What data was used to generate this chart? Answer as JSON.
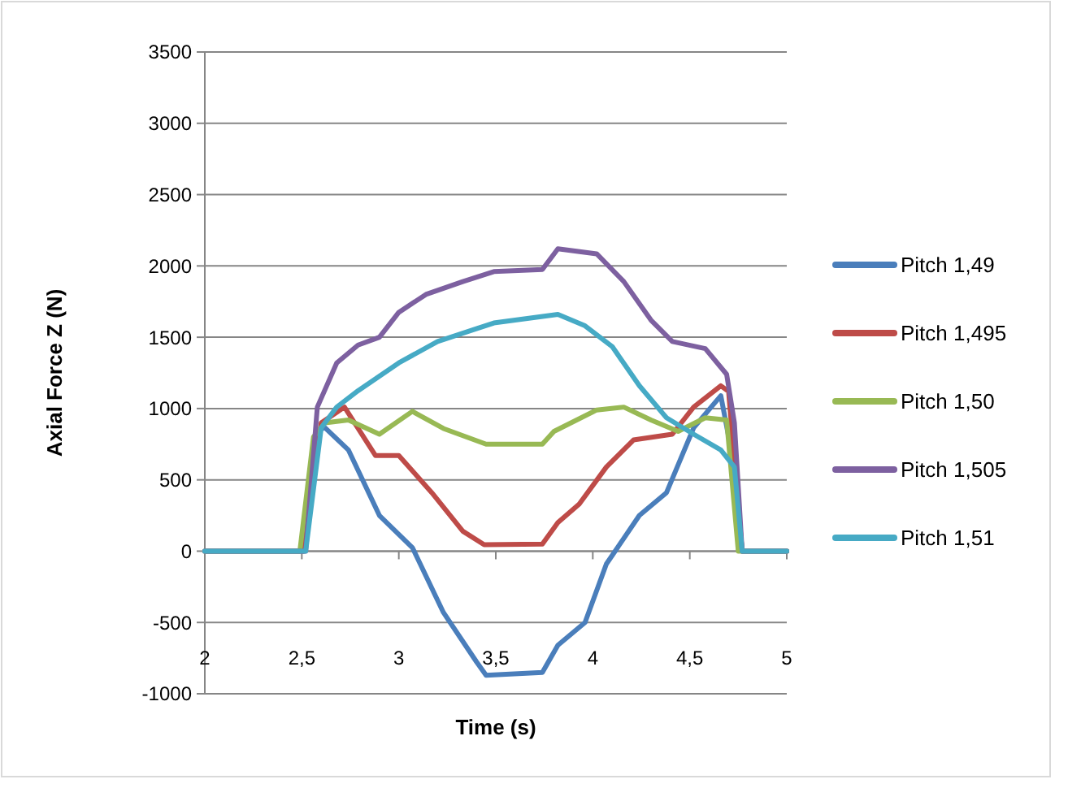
{
  "chart_data": {
    "type": "line",
    "xlabel": "Time (s)",
    "ylabel": "Axial Force Z (N)",
    "xlim": [
      2,
      5
    ],
    "xticks": [
      2,
      {
        "value": 2.5,
        "label": "2,5"
      },
      3,
      {
        "value": 3.5,
        "label": "3,5"
      },
      4,
      {
        "value": 4.5,
        "label": "4,5"
      },
      5
    ],
    "ylim": [
      -1000,
      3500
    ],
    "yticks": [
      -1000,
      -500,
      0,
      500,
      1000,
      1500,
      2000,
      2500,
      3000,
      3500
    ],
    "grid": "y",
    "legend": "right",
    "marker": "none",
    "line_style": "solid",
    "series": [
      {
        "name": "Pitch 1,49",
        "color": "#4a7ebb",
        "x": [
          2,
          2.5,
          2.51,
          2.58,
          2.62,
          2.74,
          2.9,
          3.07,
          3.23,
          3.4,
          3.45,
          3.74,
          3.82,
          3.96,
          4.07,
          4.24,
          4.38,
          4.52,
          4.66,
          4.73,
          4.77,
          5
        ],
        "values": [
          0,
          0,
          0,
          850,
          865,
          710,
          250,
          25,
          -430,
          -775,
          -870,
          -850,
          -660,
          -500,
          -90,
          250,
          410,
          865,
          1090,
          590,
          0,
          0
        ]
      },
      {
        "name": "Pitch 1,495",
        "color": "#be4b48",
        "x": [
          2,
          2.5,
          2.51,
          2.6,
          2.72,
          2.88,
          3.0,
          3.17,
          3.33,
          3.44,
          3.74,
          3.82,
          3.93,
          4.07,
          4.21,
          4.41,
          4.52,
          4.66,
          4.7,
          4.77,
          5
        ],
        "values": [
          0,
          0,
          0,
          900,
          1010,
          670,
          670,
          410,
          140,
          45,
          50,
          200,
          330,
          590,
          780,
          820,
          1010,
          1160,
          1120,
          0,
          0
        ]
      },
      {
        "name": "Pitch 1,50",
        "color": "#98b954",
        "x": [
          2,
          2.48,
          2.49,
          2.56,
          2.62,
          2.74,
          2.9,
          3.07,
          3.23,
          3.45,
          3.74,
          3.8,
          4.02,
          4.16,
          4.3,
          4.44,
          4.58,
          4.69,
          4.75,
          5
        ],
        "values": [
          0,
          0,
          0,
          800,
          900,
          920,
          820,
          980,
          860,
          750,
          750,
          840,
          990,
          1010,
          920,
          840,
          935,
          920,
          0,
          0
        ]
      },
      {
        "name": "Pitch 1,505",
        "color": "#7d60a0",
        "x": [
          2,
          2.5,
          2.52,
          2.58,
          2.68,
          2.79,
          2.9,
          3.0,
          3.14,
          3.33,
          3.49,
          3.74,
          3.82,
          4.02,
          4.16,
          4.3,
          4.41,
          4.58,
          4.69,
          4.73,
          4.77,
          5
        ],
        "values": [
          0,
          0,
          0,
          1010,
          1320,
          1445,
          1500,
          1675,
          1800,
          1890,
          1960,
          1975,
          2120,
          2085,
          1890,
          1620,
          1470,
          1420,
          1240,
          900,
          0,
          0
        ]
      },
      {
        "name": "Pitch 1,51",
        "color": "#46aac5",
        "x": [
          2,
          2.5,
          2.52,
          2.6,
          2.68,
          2.79,
          3.0,
          3.2,
          3.4,
          3.49,
          3.82,
          3.96,
          4.1,
          4.24,
          4.38,
          4.52,
          4.66,
          4.73,
          4.77,
          5
        ],
        "values": [
          0,
          0,
          0,
          865,
          1010,
          1125,
          1320,
          1470,
          1560,
          1600,
          1660,
          1580,
          1435,
          1160,
          935,
          820,
          710,
          590,
          0,
          0
        ]
      }
    ]
  }
}
